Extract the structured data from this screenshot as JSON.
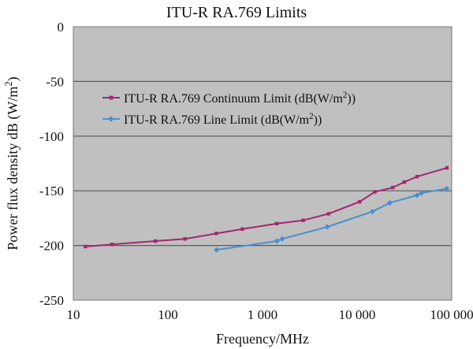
{
  "chart_data": {
    "type": "line",
    "title": "ITU-R RA.769 Limits",
    "xlabel": "Frequency/MHz",
    "ylabel": "Power flux density dB (W/m²)",
    "xscale": "log",
    "xlim": [
      10,
      100000
    ],
    "ylim": [
      -250,
      0
    ],
    "x_tick_labels": [
      "10",
      "100",
      "1 000",
      "10 000",
      "100 000"
    ],
    "y_tick_labels": [
      "0",
      "-50",
      "-100",
      "-150",
      "-200",
      "-250"
    ],
    "grid": "horizontal",
    "legend_position": "top-left",
    "plot_background": "#c0c0c0",
    "series": [
      {
        "name": "ITU-R RA.769 Continuum Limit (dB(W/m²))",
        "color": "#a0286e",
        "marker": "square",
        "x": [
          13.385,
          25.61,
          73.8,
          151.525,
          325,
          611,
          1413.5,
          2695,
          4995,
          10650,
          15375,
          23800,
          31550,
          43000,
          89000
        ],
        "y": [
          -201,
          -199,
          -196,
          -194,
          -189,
          -185,
          -180,
          -177,
          -171,
          -160,
          -151,
          -147,
          -142,
          -137,
          -129
        ]
      },
      {
        "name": "ITU-R RA.769 Line Limit (dB(W/m²))",
        "color": "#4a8fd0",
        "marker": "diamond",
        "x": [
          327,
          1420,
          1612,
          4830,
          14500,
          22200,
          43000,
          48000,
          88600
        ],
        "y": [
          -204,
          -196,
          -194,
          -183,
          -169,
          -161,
          -154,
          -152,
          -148
        ]
      }
    ]
  }
}
